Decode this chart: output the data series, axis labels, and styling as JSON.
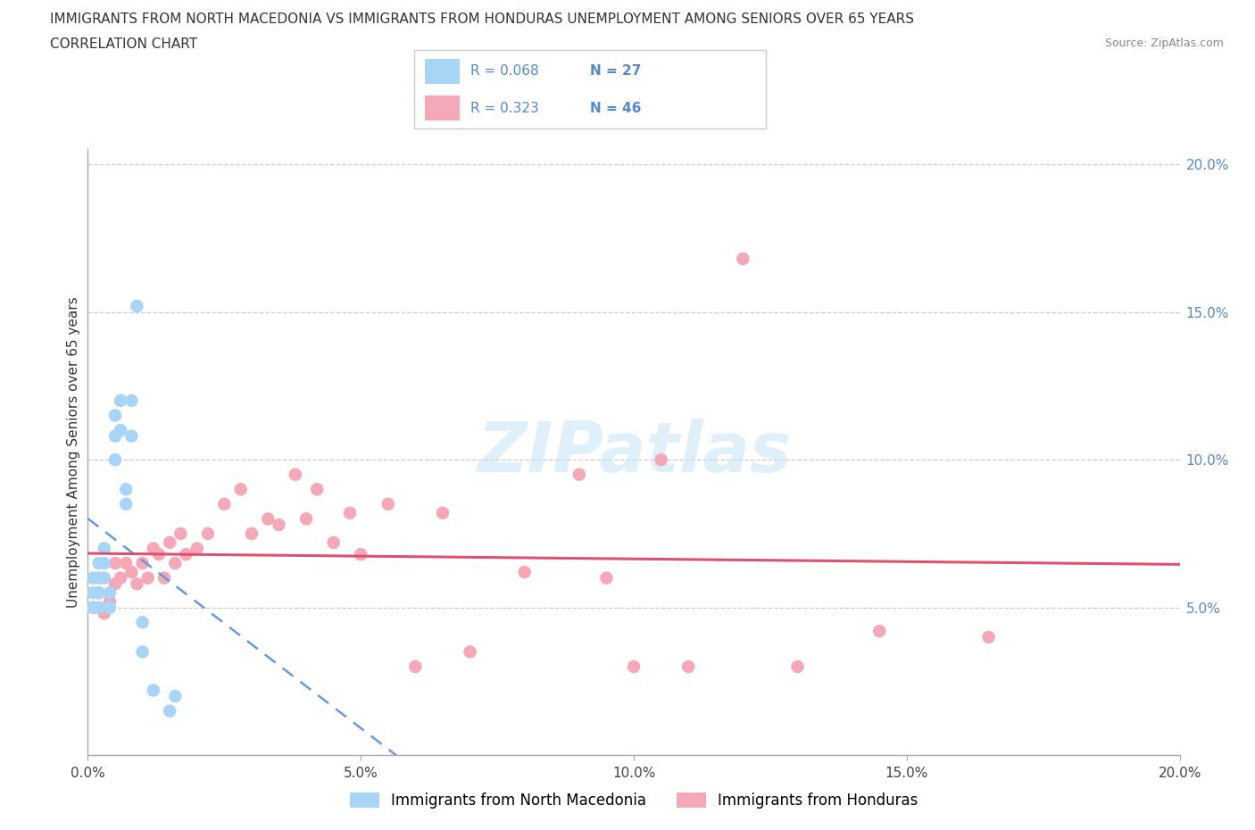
{
  "title_line1": "IMMIGRANTS FROM NORTH MACEDONIA VS IMMIGRANTS FROM HONDURAS UNEMPLOYMENT AMONG SENIORS OVER 65 YEARS",
  "title_line2": "CORRELATION CHART",
  "source": "Source: ZipAtlas.com",
  "ylabel": "Unemployment Among Seniors over 65 years",
  "xlim": [
    0.0,
    0.2
  ],
  "ylim": [
    0.0,
    0.205
  ],
  "yticks": [
    0.05,
    0.1,
    0.15,
    0.2
  ],
  "xticks": [
    0.0,
    0.05,
    0.1,
    0.15,
    0.2
  ],
  "ytick_labels": [
    "5.0%",
    "10.0%",
    "15.0%",
    "20.0%"
  ],
  "xtick_labels": [
    "0.0%",
    "5.0%",
    "10.0%",
    "15.0%",
    "20.0%"
  ],
  "macedonia_color": "#a8d4f5",
  "honduras_color": "#f5a8b8",
  "macedonia_line_color": "#6699dd",
  "honduras_line_color": "#e05070",
  "macedonia_R": 0.068,
  "macedonia_N": 27,
  "honduras_R": 0.323,
  "honduras_N": 46,
  "legend_label_1": "Immigrants from North Macedonia",
  "legend_label_2": "Immigrants from Honduras",
  "watermark": "ZIPatlas",
  "macedonia_x": [
    0.001,
    0.001,
    0.001,
    0.002,
    0.002,
    0.002,
    0.002,
    0.003,
    0.003,
    0.003,
    0.004,
    0.004,
    0.005,
    0.005,
    0.005,
    0.006,
    0.006,
    0.007,
    0.007,
    0.008,
    0.008,
    0.009,
    0.01,
    0.01,
    0.012,
    0.015,
    0.016
  ],
  "macedonia_y": [
    0.055,
    0.06,
    0.05,
    0.065,
    0.06,
    0.055,
    0.05,
    0.07,
    0.065,
    0.06,
    0.055,
    0.05,
    0.115,
    0.108,
    0.1,
    0.11,
    0.12,
    0.09,
    0.085,
    0.12,
    0.108,
    0.152,
    0.045,
    0.035,
    0.022,
    0.015,
    0.02
  ],
  "honduras_x": [
    0.001,
    0.002,
    0.003,
    0.004,
    0.005,
    0.005,
    0.006,
    0.007,
    0.008,
    0.009,
    0.01,
    0.011,
    0.012,
    0.013,
    0.014,
    0.015,
    0.016,
    0.017,
    0.018,
    0.02,
    0.022,
    0.025,
    0.028,
    0.03,
    0.033,
    0.035,
    0.038,
    0.04,
    0.042,
    0.045,
    0.048,
    0.05,
    0.055,
    0.06,
    0.065,
    0.07,
    0.08,
    0.09,
    0.095,
    0.1,
    0.105,
    0.11,
    0.12,
    0.13,
    0.145,
    0.165
  ],
  "honduras_y": [
    0.05,
    0.055,
    0.048,
    0.052,
    0.058,
    0.065,
    0.06,
    0.065,
    0.062,
    0.058,
    0.065,
    0.06,
    0.07,
    0.068,
    0.06,
    0.072,
    0.065,
    0.075,
    0.068,
    0.07,
    0.075,
    0.085,
    0.09,
    0.075,
    0.08,
    0.078,
    0.095,
    0.08,
    0.09,
    0.072,
    0.082,
    0.068,
    0.085,
    0.03,
    0.082,
    0.035,
    0.062,
    0.095,
    0.06,
    0.03,
    0.1,
    0.03,
    0.168,
    0.03,
    0.042,
    0.04
  ]
}
